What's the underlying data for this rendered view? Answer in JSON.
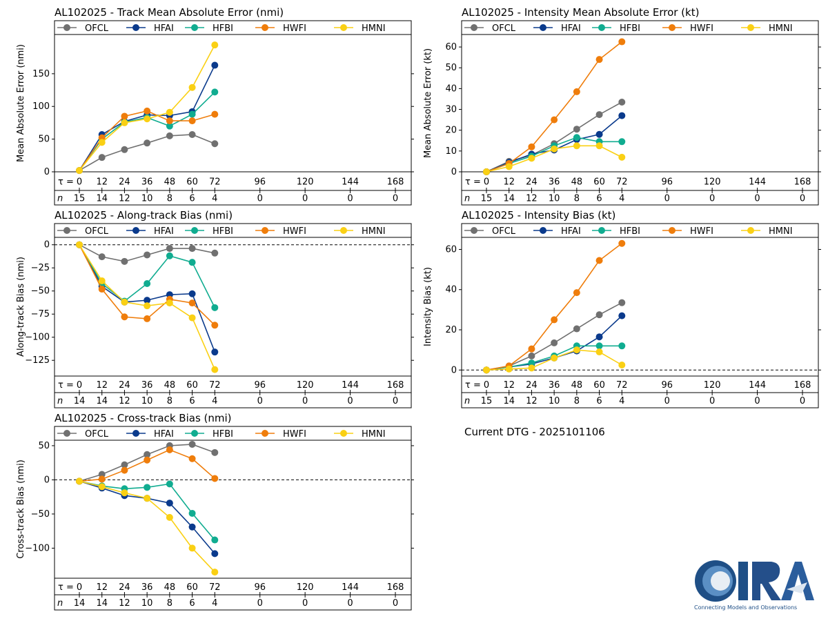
{
  "colors": {
    "OFCL": "#707070",
    "HFAI": "#0a3a8c",
    "HFBI": "#10ac90",
    "HWFI": "#ef7d0b",
    "HMNI": "#fad014"
  },
  "tau_labels": [
    "0",
    "12",
    "24",
    "36",
    "48",
    "60",
    "72",
    "96",
    "120",
    "144",
    "168"
  ],
  "tau_prefix": "τ =",
  "n_prefix": "n",
  "dtg_label": "Current DTG - 2025101106",
  "logo": {
    "text": "CIRA",
    "tagline": "Connecting Models and Observations"
  },
  "chart_data": [
    {
      "id": "track",
      "type": "line",
      "title": "AL102025 - Track Mean Absolute Error (nmi)",
      "ylabel": "Mean Absolute Error (nmi)",
      "ylim": [
        0,
        210
      ],
      "yticks": [
        0,
        50,
        100,
        150
      ],
      "zero_line": false,
      "x": [
        0,
        12,
        24,
        36,
        48,
        60,
        72
      ],
      "n_counts": [
        "15",
        "14",
        "12",
        "10",
        "8",
        "6",
        "4",
        "0",
        "0",
        "0",
        "0"
      ],
      "legend": [
        "OFCL",
        "HFAI",
        "HFBI",
        "HWFI",
        "HMNI"
      ],
      "series": [
        {
          "name": "OFCL",
          "values": [
            2,
            22,
            34,
            44,
            55,
            57,
            43
          ]
        },
        {
          "name": "HFAI",
          "values": [
            2,
            57,
            77,
            87,
            86,
            92,
            163
          ]
        },
        {
          "name": "HFBI",
          "values": [
            2,
            50,
            76,
            83,
            70,
            88,
            122
          ]
        },
        {
          "name": "HWFI",
          "values": [
            2,
            52,
            85,
            93,
            78,
            78,
            88
          ]
        },
        {
          "name": "HMNI",
          "values": [
            2,
            45,
            75,
            81,
            91,
            129,
            194
          ]
        }
      ]
    },
    {
      "id": "intensity",
      "type": "line",
      "title": "AL102025 - Intensity Mean Absolute Error (kt)",
      "ylabel": "Mean Absolute Error (kt)",
      "ylim": [
        0,
        66
      ],
      "yticks": [
        0,
        10,
        20,
        30,
        40,
        50,
        60
      ],
      "zero_line": false,
      "x": [
        0,
        12,
        24,
        36,
        48,
        60,
        72
      ],
      "n_counts": [
        "15",
        "14",
        "12",
        "10",
        "8",
        "6",
        "4",
        "0",
        "0",
        "0",
        "0"
      ],
      "legend": [
        "OFCL",
        "HFAI",
        "HFBI",
        "HWFI",
        "HMNI"
      ],
      "series": [
        {
          "name": "OFCL",
          "values": [
            0,
            5,
            8,
            13.5,
            20.5,
            27.5,
            33.5
          ]
        },
        {
          "name": "HFAI",
          "values": [
            0,
            4.5,
            8.5,
            10.5,
            15.5,
            18,
            27
          ]
        },
        {
          "name": "HFBI",
          "values": [
            0,
            4,
            7.5,
            12.5,
            16.5,
            14.5,
            14.5
          ]
        },
        {
          "name": "HWFI",
          "values": [
            0,
            4,
            12,
            25,
            38.5,
            54,
            62.5
          ]
        },
        {
          "name": "HMNI",
          "values": [
            0,
            2.5,
            6.5,
            11,
            12.5,
            12.5,
            7
          ]
        }
      ]
    },
    {
      "id": "along",
      "type": "line",
      "title": "AL102025 - Along-track Bias (nmi)",
      "ylabel": "Along-track Bias (nmi)",
      "ylim": [
        -142,
        8
      ],
      "yticks": [
        0,
        -25,
        -50,
        -75,
        -100,
        -125
      ],
      "zero_line": true,
      "x": [
        0,
        12,
        24,
        36,
        48,
        60,
        72
      ],
      "n_counts": [
        "14",
        "14",
        "12",
        "10",
        "8",
        "6",
        "4",
        "0",
        "0",
        "0",
        "0"
      ],
      "legend": [
        "OFCL",
        "HFAI",
        "HFBI",
        "HWFI",
        "HMNI"
      ],
      "series": [
        {
          "name": "OFCL",
          "values": [
            0,
            -13,
            -18,
            -11,
            -4,
            -4,
            -9
          ]
        },
        {
          "name": "HFAI",
          "values": [
            0,
            -45,
            -62,
            -60,
            -54,
            -53,
            -116
          ]
        },
        {
          "name": "HFBI",
          "values": [
            0,
            -42,
            -61,
            -42,
            -12,
            -19,
            -68
          ]
        },
        {
          "name": "HWFI",
          "values": [
            0,
            -48,
            -78,
            -80,
            -59,
            -63,
            -87
          ]
        },
        {
          "name": "HMNI",
          "values": [
            0,
            -39,
            -62,
            -66,
            -63,
            -79,
            -135
          ]
        }
      ]
    },
    {
      "id": "ibias",
      "type": "line",
      "title": "AL102025 - Intensity Bias (kt)",
      "ylabel": "Intensity Bias (kt)",
      "ylim": [
        -3,
        66
      ],
      "yticks": [
        0,
        20,
        40,
        60
      ],
      "zero_line": true,
      "x": [
        0,
        12,
        24,
        36,
        48,
        60,
        72
      ],
      "n_counts": [
        "15",
        "14",
        "12",
        "10",
        "8",
        "6",
        "4",
        "0",
        "0",
        "0",
        "0"
      ],
      "legend": [
        "OFCL",
        "HFAI",
        "HFBI",
        "HWFI",
        "HMNI"
      ],
      "series": [
        {
          "name": "OFCL",
          "values": [
            0,
            2,
            7,
            13.5,
            20.5,
            27.5,
            33.5
          ]
        },
        {
          "name": "HFAI",
          "values": [
            0,
            1.5,
            3,
            6,
            9.5,
            16.5,
            27
          ]
        },
        {
          "name": "HFBI",
          "values": [
            0,
            1.5,
            3.5,
            7,
            12,
            12,
            12
          ]
        },
        {
          "name": "HWFI",
          "values": [
            0,
            2,
            10.5,
            25,
            38.5,
            54.5,
            63
          ]
        },
        {
          "name": "HMNI",
          "values": [
            0,
            0.5,
            1,
            6,
            10,
            9,
            2.5
          ]
        }
      ]
    },
    {
      "id": "cross",
      "type": "line",
      "title": "AL102025 - Cross-track Bias (nmi)",
      "ylabel": "Cross-track Bias (nmi)",
      "ylim": [
        -144,
        58
      ],
      "yticks": [
        50,
        0,
        -50,
        -100
      ],
      "zero_line": true,
      "x": [
        0,
        12,
        24,
        36,
        48,
        60,
        72
      ],
      "n_counts": [
        "14",
        "14",
        "12",
        "10",
        "8",
        "6",
        "4",
        "0",
        "0",
        "0",
        "0"
      ],
      "legend": [
        "OFCL",
        "HFAI",
        "HFBI",
        "HWFI",
        "HMNI"
      ],
      "series": [
        {
          "name": "OFCL",
          "values": [
            -2,
            8,
            22,
            37,
            50,
            52,
            40
          ]
        },
        {
          "name": "HFAI",
          "values": [
            -2,
            -12,
            -23,
            -27,
            -34,
            -69,
            -108
          ]
        },
        {
          "name": "HFBI",
          "values": [
            -2,
            -9,
            -13,
            -11,
            -6,
            -49,
            -88
          ]
        },
        {
          "name": "HWFI",
          "values": [
            -2,
            1,
            14,
            29,
            44,
            31,
            2
          ]
        },
        {
          "name": "HMNI",
          "values": [
            -2,
            -10,
            -19,
            -27,
            -55,
            -100,
            -135
          ]
        }
      ]
    }
  ]
}
